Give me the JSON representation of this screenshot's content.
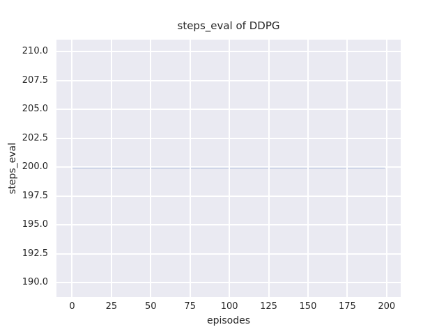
{
  "chart_data": {
    "type": "line",
    "title": "steps_eval of DDPG",
    "xlabel": "episodes",
    "ylabel": "steps_eval",
    "x_ticks": [
      {
        "value": 0,
        "label": "0"
      },
      {
        "value": 25,
        "label": "25"
      },
      {
        "value": 50,
        "label": "50"
      },
      {
        "value": 75,
        "label": "75"
      },
      {
        "value": 100,
        "label": "100"
      },
      {
        "value": 125,
        "label": "125"
      },
      {
        "value": 150,
        "label": "150"
      },
      {
        "value": 175,
        "label": "175"
      },
      {
        "value": 200,
        "label": "200"
      }
    ],
    "y_ticks": [
      {
        "value": 190.0,
        "label": "190.0"
      },
      {
        "value": 192.5,
        "label": "192.5"
      },
      {
        "value": 195.0,
        "label": "195.0"
      },
      {
        "value": 197.5,
        "label": "197.5"
      },
      {
        "value": 200.0,
        "label": "200.0"
      },
      {
        "value": 202.5,
        "label": "202.5"
      },
      {
        "value": 205.0,
        "label": "205.0"
      },
      {
        "value": 207.5,
        "label": "207.5"
      },
      {
        "value": 210.0,
        "label": "210.0"
      }
    ],
    "xlim": [
      -9.95,
      208.95
    ],
    "ylim": [
      188.75,
      211.05
    ],
    "grid": true,
    "grid_over_data": true,
    "legend": "none",
    "plot_bg_color": "#eaeaf2",
    "grid_color": "#ffffff",
    "text_color": "#262626",
    "series": [
      {
        "name": "DDPG",
        "color": "#4c72b0",
        "line_width": 2.4,
        "x": [
          0,
          199
        ],
        "y": [
          200,
          200
        ]
      }
    ]
  }
}
